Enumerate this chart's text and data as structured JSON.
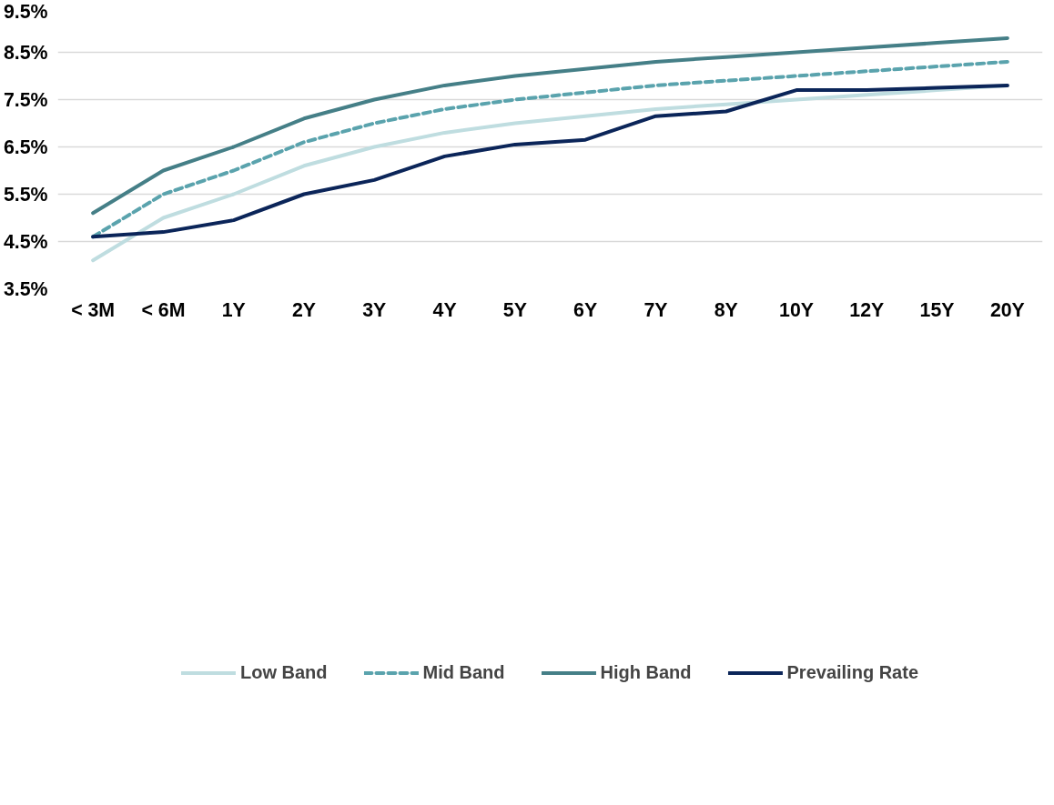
{
  "chart_data": {
    "type": "line",
    "categories": [
      "< 3M",
      "< 6M",
      "1Y",
      "2Y",
      "3Y",
      "4Y",
      "5Y",
      "6Y",
      "7Y",
      "8Y",
      "10Y",
      "12Y",
      "15Y",
      "20Y"
    ],
    "ylim": [
      3.5,
      9.5
    ],
    "yticks": [
      {
        "value": 3.5,
        "label": "3.5%"
      },
      {
        "value": 4.5,
        "label": "4.5%"
      },
      {
        "value": 5.5,
        "label": "5.5%"
      },
      {
        "value": 6.5,
        "label": "6.5%"
      },
      {
        "value": 7.5,
        "label": "7.5%"
      },
      {
        "value": 8.5,
        "label": "8.5%"
      },
      {
        "value": 9.5,
        "label": "9.5%"
      }
    ],
    "grid": "y",
    "legend": "bottom",
    "series": [
      {
        "name": "Low Band",
        "color": "#bfdde0",
        "line_style": "solid",
        "values": [
          4.1,
          5.0,
          5.5,
          6.1,
          6.5,
          6.8,
          7.0,
          7.15,
          7.3,
          7.4,
          7.5,
          7.6,
          7.7,
          7.8
        ]
      },
      {
        "name": "Mid Band",
        "color": "#5aa3ad",
        "line_style": "dashed",
        "values": [
          4.6,
          5.5,
          6.0,
          6.6,
          7.0,
          7.3,
          7.5,
          7.65,
          7.8,
          7.9,
          8.0,
          8.1,
          8.2,
          8.3
        ]
      },
      {
        "name": "High Band",
        "color": "#457f87",
        "line_style": "solid",
        "values": [
          5.1,
          6.0,
          6.5,
          7.1,
          7.5,
          7.8,
          8.0,
          8.15,
          8.3,
          8.4,
          8.5,
          8.6,
          8.7,
          8.8
        ]
      },
      {
        "name": "Prevailing Rate",
        "color": "#0b2559",
        "line_style": "solid",
        "values": [
          4.6,
          4.7,
          4.95,
          5.5,
          5.8,
          6.3,
          6.55,
          6.65,
          7.15,
          7.25,
          7.7,
          7.7,
          7.75,
          7.8
        ]
      }
    ]
  }
}
